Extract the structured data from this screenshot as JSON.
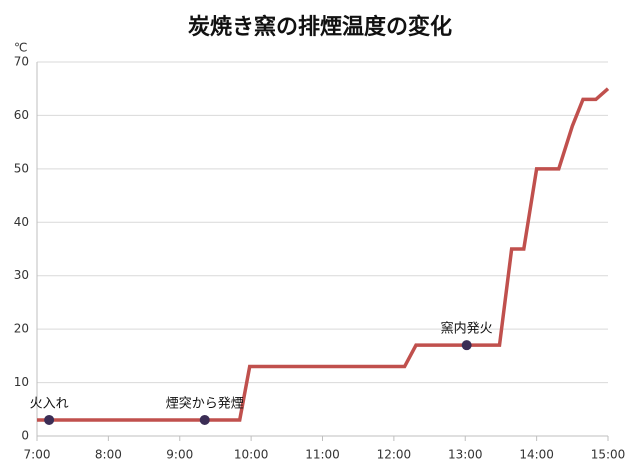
{
  "chart_data": {
    "type": "line",
    "title": "炭焼き窯の排煙温度の変化",
    "y_label": "℃",
    "x": [
      7,
      9.84,
      9.98,
      12.15,
      12.31,
      13.48,
      13.65,
      13.82,
      14.0,
      14.31,
      14.5,
      14.65,
      14.83,
      15
    ],
    "series": [
      {
        "name": "排煙温度",
        "color": "#c0504d",
        "values": [
          3,
          3,
          13,
          13,
          17,
          17,
          35,
          35,
          50,
          50,
          58,
          63,
          63,
          65
        ]
      }
    ],
    "xlim": [
      7,
      15
    ],
    "xticks": [
      {
        "value": 7,
        "label": "7:00"
      },
      {
        "value": 8,
        "label": "8:00"
      },
      {
        "value": 9,
        "label": "9:00"
      },
      {
        "value": 10,
        "label": "10:00"
      },
      {
        "value": 11,
        "label": "11:00"
      },
      {
        "value": 12,
        "label": "12:00"
      },
      {
        "value": 13,
        "label": "13:00"
      },
      {
        "value": 14,
        "label": "14:00"
      },
      {
        "value": 15,
        "label": "15:00"
      }
    ],
    "ylim": [
      0,
      70
    ],
    "yticks": [
      0,
      10,
      20,
      30,
      40,
      50,
      60,
      70
    ],
    "grid": true,
    "annotations": [
      {
        "text": "火入れ",
        "x": 7.17,
        "y": 3
      },
      {
        "text": "煙突から発煙",
        "x": 9.35,
        "y": 3
      },
      {
        "text": "窯内発火",
        "x": 13.02,
        "y": 17
      }
    ],
    "marker_color": "#3b2d55"
  }
}
